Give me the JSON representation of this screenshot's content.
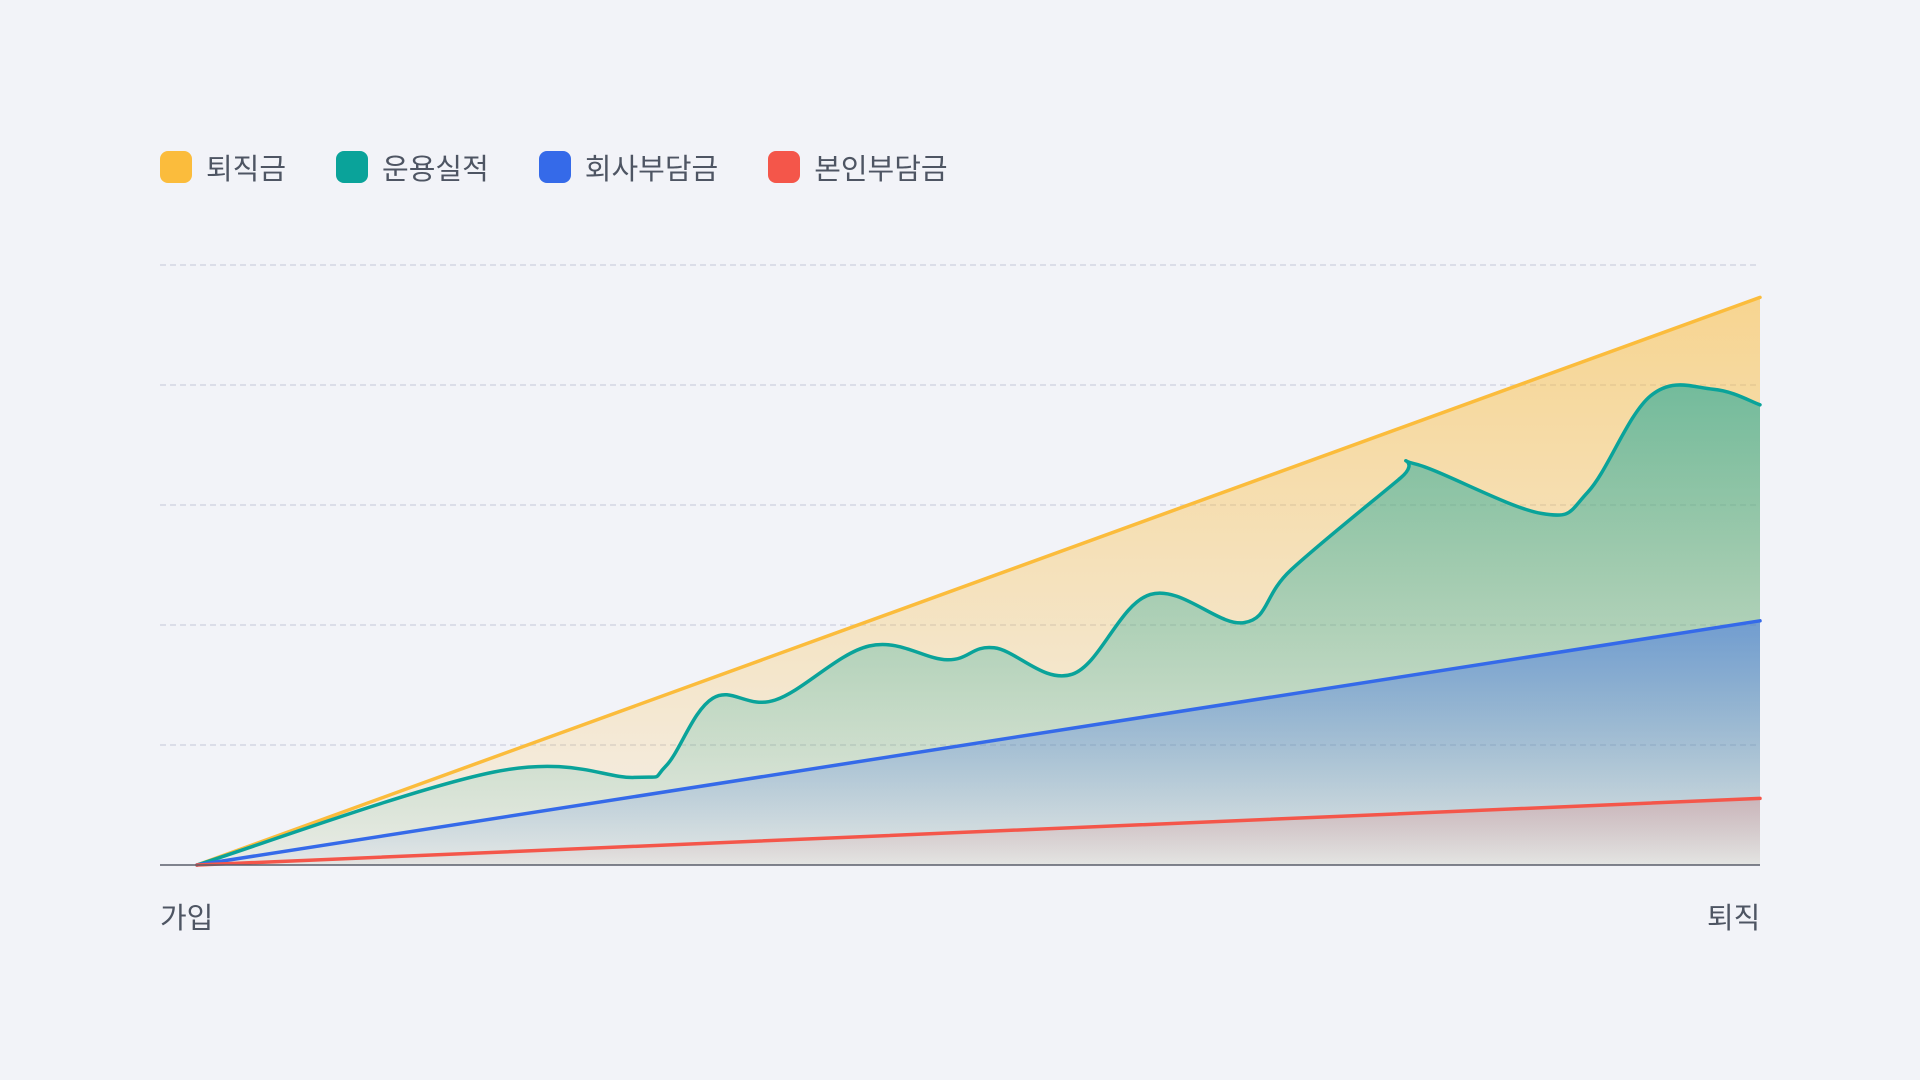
{
  "legend": [
    {
      "label": "퇴직금",
      "color": "#fbbc3c",
      "swatch_icon": "rounded-square"
    },
    {
      "label": "운용실적",
      "color": "#0aa39a",
      "swatch_icon": "rounded-square"
    },
    {
      "label": "회사부담금",
      "color": "#356ae9",
      "swatch_icon": "rounded-square"
    },
    {
      "label": "본인부담금",
      "color": "#f4564a",
      "swatch_icon": "rounded-square"
    }
  ],
  "chart_data": {
    "type": "area",
    "xlabel": "",
    "ylabel": "",
    "x_tick_labels": [
      "가입",
      "퇴직"
    ],
    "xlim": [
      0,
      100
    ],
    "ylim": [
      0,
      100
    ],
    "grid": true,
    "legend_position": "top-left",
    "series": [
      {
        "name": "퇴직금",
        "color": "#fbbc3c",
        "x": [
          0,
          100
        ],
        "y": [
          0,
          94.6
        ],
        "smooth": false
      },
      {
        "name": "운용실적",
        "color": "#0aa39a",
        "x": [
          0,
          19,
          28,
          30,
          33,
          37,
          43,
          48,
          51,
          56,
          61,
          67,
          70,
          77,
          78,
          86,
          89,
          93,
          97,
          100
        ],
        "y": [
          0,
          15.5,
          14.6,
          16.5,
          27.8,
          27.5,
          36.5,
          34.2,
          36.2,
          31.8,
          45.1,
          40.4,
          49.2,
          64.5,
          66.8,
          58.6,
          62.2,
          78.2,
          79.3,
          76.7
        ],
        "smooth": true
      },
      {
        "name": "회사부담금",
        "color": "#356ae9",
        "x": [
          0,
          100
        ],
        "y": [
          0,
          40.7
        ],
        "smooth": false
      },
      {
        "name": "본인부담금",
        "color": "#f4564a",
        "x": [
          0,
          100
        ],
        "y": [
          0,
          11.1
        ],
        "smooth": false
      }
    ]
  }
}
